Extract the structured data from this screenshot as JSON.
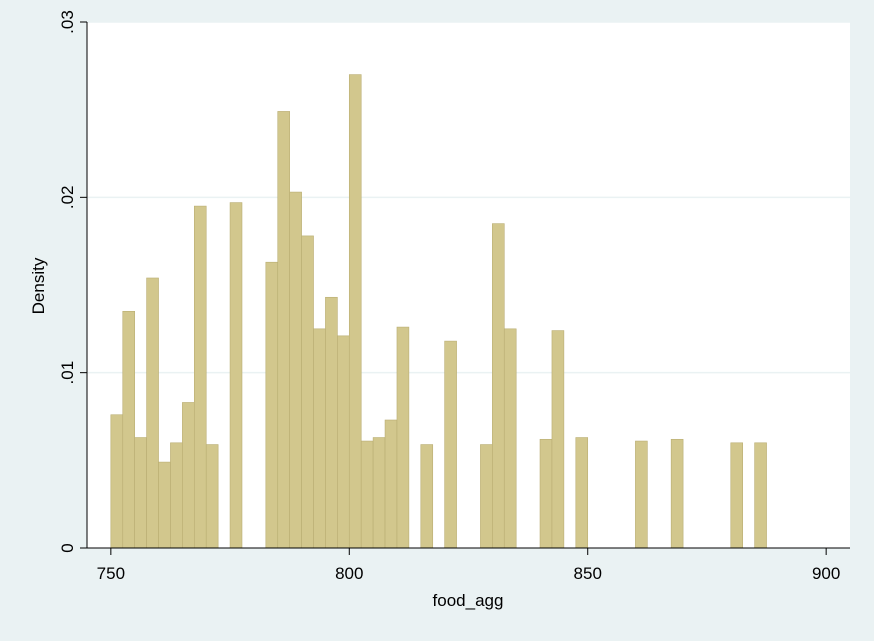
{
  "chart_data": {
    "type": "bar",
    "title": "",
    "xlabel": "food_agg",
    "ylabel": "Density",
    "xlim": [
      745,
      905
    ],
    "ylim": [
      0,
      0.03
    ],
    "xticks": [
      750,
      800,
      850,
      900
    ],
    "yticks": [
      0,
      0.01,
      0.02,
      0.03
    ],
    "xtick_labels": [
      "750",
      "800",
      "850",
      "900"
    ],
    "ytick_labels": [
      "0",
      ".01",
      ".02",
      ".03"
    ],
    "grid": true,
    "bin_width": 2.5,
    "bar_color": "#d2c78d",
    "bar_edge_color": "#b9ad72",
    "bins": [
      {
        "x": 750.0,
        "y": 0.0076
      },
      {
        "x": 752.5,
        "y": 0.0135
      },
      {
        "x": 755.0,
        "y": 0.0063
      },
      {
        "x": 757.5,
        "y": 0.0154
      },
      {
        "x": 760.0,
        "y": 0.0049
      },
      {
        "x": 762.5,
        "y": 0.006
      },
      {
        "x": 765.0,
        "y": 0.0083
      },
      {
        "x": 767.5,
        "y": 0.0195
      },
      {
        "x": 770.0,
        "y": 0.0059
      },
      {
        "x": 775.0,
        "y": 0.0197
      },
      {
        "x": 782.5,
        "y": 0.0163
      },
      {
        "x": 785.0,
        "y": 0.0249
      },
      {
        "x": 787.5,
        "y": 0.0203
      },
      {
        "x": 790.0,
        "y": 0.0178
      },
      {
        "x": 792.5,
        "y": 0.0125
      },
      {
        "x": 795.0,
        "y": 0.0143
      },
      {
        "x": 797.5,
        "y": 0.0121
      },
      {
        "x": 800.0,
        "y": 0.027
      },
      {
        "x": 802.5,
        "y": 0.0061
      },
      {
        "x": 805.0,
        "y": 0.0063
      },
      {
        "x": 807.5,
        "y": 0.0073
      },
      {
        "x": 810.0,
        "y": 0.0126
      },
      {
        "x": 815.0,
        "y": 0.0059
      },
      {
        "x": 820.0,
        "y": 0.0118
      },
      {
        "x": 827.5,
        "y": 0.0059
      },
      {
        "x": 830.0,
        "y": 0.0185
      },
      {
        "x": 832.5,
        "y": 0.0125
      },
      {
        "x": 840.0,
        "y": 0.0062
      },
      {
        "x": 842.5,
        "y": 0.0124
      },
      {
        "x": 847.5,
        "y": 0.0063
      },
      {
        "x": 860.0,
        "y": 0.0061
      },
      {
        "x": 867.5,
        "y": 0.0062
      },
      {
        "x": 880.0,
        "y": 0.006
      },
      {
        "x": 885.0,
        "y": 0.006
      }
    ]
  }
}
